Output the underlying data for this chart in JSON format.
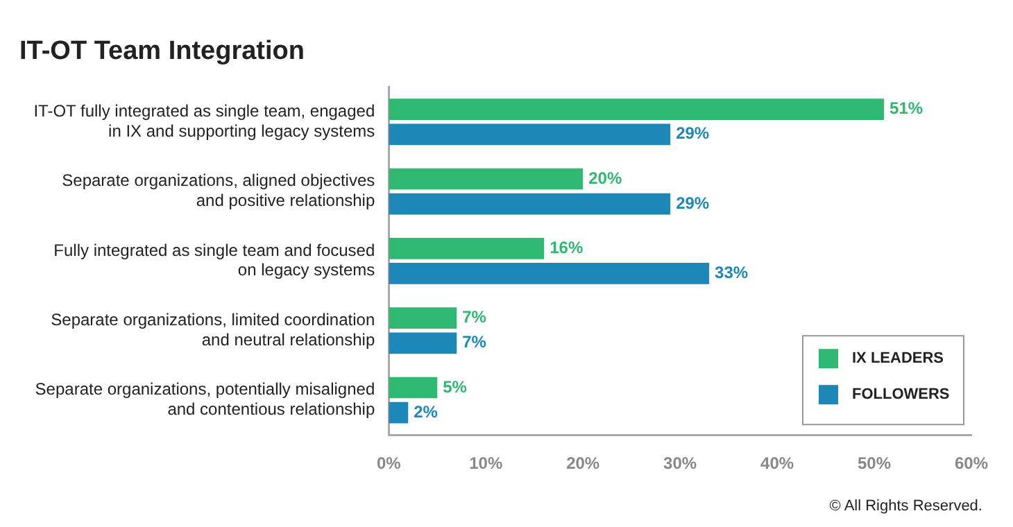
{
  "chart_data": {
    "type": "bar",
    "orientation": "horizontal",
    "title": "IT-OT Team Integration",
    "categories": [
      "IT-OT fully integrated as single team, engaged in IX and supporting legacy systems",
      "Separate organizations, aligned objectives and positive relationship",
      "Fully integrated as single team and focused on legacy systems",
      "Separate organizations, limited coordination and neutral relationship",
      "Separate organizations, potentially misaligned and contentious relationship"
    ],
    "series": [
      {
        "name": "IX LEADERS",
        "color": "#2eb872",
        "values": [
          51,
          20,
          16,
          7,
          5
        ],
        "value_labels": [
          "51%",
          "20%",
          "16%",
          "7%",
          "5%"
        ]
      },
      {
        "name": "FOLLOWERS",
        "color": "#1d88b8",
        "values": [
          29,
          29,
          33,
          7,
          2
        ],
        "value_labels": [
          "29%",
          "29%",
          "33%",
          "7%",
          "2%"
        ]
      }
    ],
    "xlim": [
      0,
      60
    ],
    "xticks": [
      {
        "value": 0,
        "label": "0%"
      },
      {
        "value": 10,
        "label": "10%"
      },
      {
        "value": 20,
        "label": "20%"
      },
      {
        "value": 30,
        "label": "30%"
      },
      {
        "value": 40,
        "label": "40%"
      },
      {
        "value": 50,
        "label": "50%"
      },
      {
        "value": 60,
        "label": "60%"
      }
    ],
    "grid": false,
    "legend": "bottom right",
    "annotations": [
      "© All Rights Reserved."
    ]
  }
}
